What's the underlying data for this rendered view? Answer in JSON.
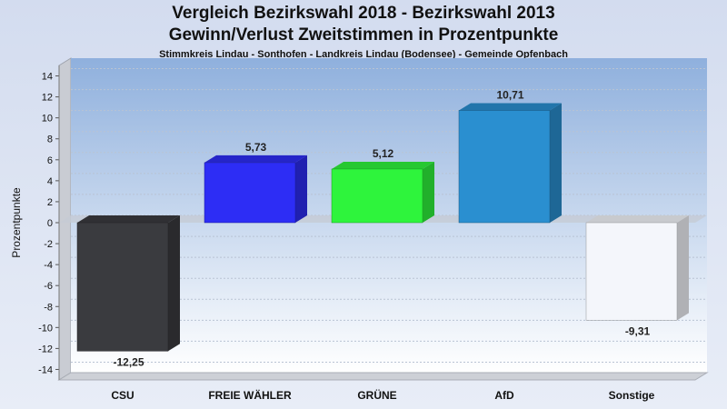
{
  "chart_data": {
    "type": "bar",
    "title": "Vergleich Bezirkswahl 2018 - Bezirkswahl 2013",
    "subtitle": "Gewinn/Verlust Zweitstimmen in Prozentpunkte",
    "subsubtitle": "Stimmkreis Lindau - Sonthofen - Landkreis Lindau (Bodensee) - Gemeinde Opfenbach",
    "ylabel": "Prozentpunkte",
    "xlabel": "",
    "ylim": [
      -15,
      15
    ],
    "yticks": [
      14,
      12,
      10,
      8,
      6,
      4,
      2,
      0,
      -2,
      -4,
      -6,
      -8,
      -10,
      -12,
      -14
    ],
    "categories": [
      "CSU",
      "FREIE WÄHLER",
      "GRÜNE",
      "AfD",
      "Sonstige"
    ],
    "values": [
      -12.25,
      5.73,
      5.12,
      10.71,
      -9.31
    ],
    "value_labels": [
      "-12,25",
      "5,73",
      "5,12",
      "10,71",
      "-9,31"
    ],
    "colors": [
      "#3a3b3f",
      "#2d2df5",
      "#2ef43c",
      "#2a8fd0",
      "#f4f6fb"
    ],
    "grid": true,
    "legend": "none"
  }
}
